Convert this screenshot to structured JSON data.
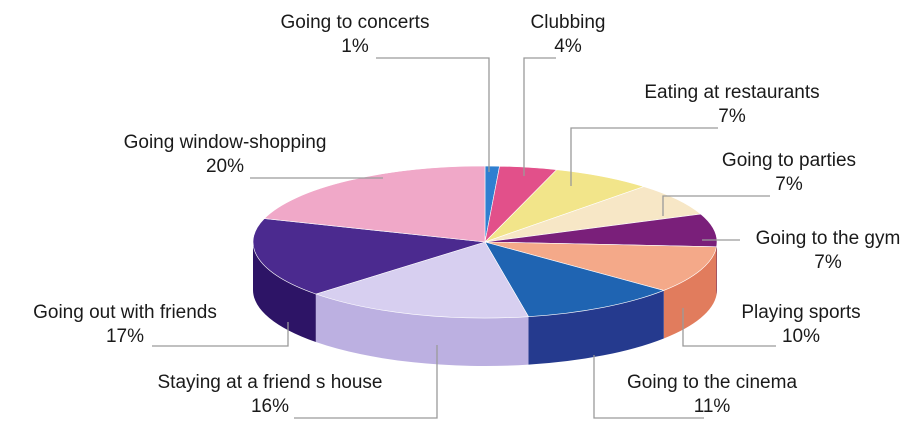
{
  "chart_data": {
    "type": "pie",
    "style": "3d-tilted",
    "legend": "none (leader-line labels)",
    "slices": [
      {
        "label": "Going to concerts",
        "value": 1,
        "value_label": "1%",
        "color": "#2f7fd0",
        "side_color": "#1d5a99"
      },
      {
        "label": "Clubbing",
        "value": 4,
        "value_label": "4%",
        "color": "#e2508a",
        "side_color": "#a8336a"
      },
      {
        "label": "Eating at restaurants",
        "value": 7,
        "value_label": "7%",
        "color": "#f2e58a",
        "side_color": "#c5b860"
      },
      {
        "label": "Going to parties",
        "value": 7,
        "value_label": "7%",
        "color": "#f7e7c6",
        "side_color": "#cdbd9c"
      },
      {
        "label": "Going to the gym",
        "value": 7,
        "value_label": "7%",
        "color": "#7a1f7a",
        "side_color": "#521552"
      },
      {
        "label": "Playing sports",
        "value": 10,
        "value_label": "10%",
        "color": "#f4a989",
        "side_color": "#e17c5d"
      },
      {
        "label": "Going to the cinema",
        "value": 11,
        "value_label": "11%",
        "color": "#1f64b2",
        "side_color": "#253a8e"
      },
      {
        "label": "Staying at a friend s house",
        "value": 16,
        "value_label": "16%",
        "color": "#d7cff0",
        "side_color": "#bcb0e1"
      },
      {
        "label": "Going out with friends",
        "value": 17,
        "value_label": "17%",
        "color": "#4b2a8f",
        "side_color": "#2d1466"
      },
      {
        "label": "Going window-shopping",
        "value": 20,
        "value_label": "20%",
        "color": "#f0a8c8",
        "side_color": "#c97ea2"
      }
    ]
  }
}
